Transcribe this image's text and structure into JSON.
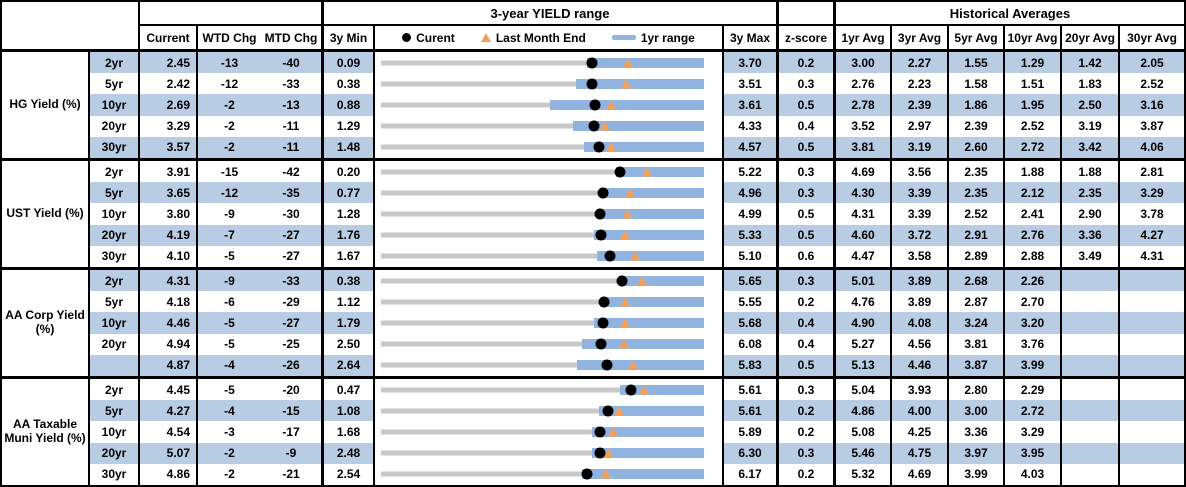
{
  "header": {
    "range_title": "3-year YIELD range",
    "hist_title": "Historical Averages",
    "cols": {
      "current": "Current",
      "wtd": "WTD Chg",
      "mtd": "MTD Chg",
      "min": "3y Min",
      "max": "3y Max",
      "z": "z-score",
      "a1": "1yr Avg",
      "a3": "3yr Avg",
      "a5": "5yr Avg",
      "a10": "10yr Avg",
      "a20": "20yr Avg",
      "a30": "30yr Avg"
    },
    "legend": {
      "current": "Curent",
      "last_month": "Last Month End",
      "range": "1yr range"
    }
  },
  "colors": {
    "row_shade": "#B8CCE4",
    "bar_1yr_range": "#90B4DF",
    "track_3yr_range": "#C8C8C8",
    "marker_current": "#000000",
    "marker_last_month_end": "#F7A055"
  },
  "chart_data": {
    "type": "table",
    "title": "3-year YIELD range",
    "legend_entries": [
      "Curent",
      "Last Month End",
      "1yr range"
    ],
    "columns": [
      "Current",
      "WTD Chg",
      "MTD Chg",
      "3y Min",
      "3y Max",
      "z-score",
      "1yr Avg",
      "3yr Avg",
      "5yr Avg",
      "10yr Avg",
      "20yr Avg",
      "30yr Avg"
    ],
    "row_chart_note": "each row: gray track spans 3y Min to 3y Max, blue bar = 1yr range, black dot = current, orange triangle = last month end",
    "sections": [
      {
        "label": "HG Yield (%)",
        "rows": [
          {
            "tenor": "2yr",
            "current": "2.45",
            "wtd": "-13",
            "mtd": "-40",
            "min": "0.09",
            "max": "3.70",
            "z": "0.2",
            "avgs": [
              "3.00",
              "2.27",
              "1.55",
              "1.29",
              "1.42",
              "2.05"
            ],
            "chart": {
              "low1y": 2.39,
              "high1y": 3.7,
              "lme": 2.85
            }
          },
          {
            "tenor": "5yr",
            "current": "2.42",
            "wtd": "-12",
            "mtd": "-33",
            "min": "0.38",
            "max": "3.51",
            "z": "0.3",
            "avgs": [
              "2.76",
              "2.23",
              "1.58",
              "1.51",
              "1.83",
              "2.52"
            ],
            "chart": {
              "low1y": 2.27,
              "high1y": 3.51,
              "lme": 2.75
            }
          },
          {
            "tenor": "10yr",
            "current": "2.69",
            "wtd": "-2",
            "mtd": "-13",
            "min": "0.88",
            "max": "3.61",
            "z": "0.5",
            "avgs": [
              "2.78",
              "2.39",
              "1.86",
              "1.95",
              "2.50",
              "3.16"
            ],
            "chart": {
              "low1y": 2.31,
              "high1y": 3.61,
              "lme": 2.82
            }
          },
          {
            "tenor": "20yr",
            "current": "3.29",
            "wtd": "-2",
            "mtd": "-11",
            "min": "1.29",
            "max": "4.33",
            "z": "0.4",
            "avgs": [
              "3.52",
              "2.97",
              "2.39",
              "2.52",
              "3.19",
              "3.87"
            ],
            "chart": {
              "low1y": 3.1,
              "high1y": 4.33,
              "lme": 3.4
            }
          },
          {
            "tenor": "30yr",
            "current": "3.57",
            "wtd": "-2",
            "mtd": "-11",
            "min": "1.48",
            "max": "4.57",
            "z": "0.5",
            "avgs": [
              "3.81",
              "3.19",
              "2.60",
              "2.72",
              "3.42",
              "4.06"
            ],
            "chart": {
              "low1y": 3.42,
              "high1y": 4.57,
              "lme": 3.68
            }
          }
        ]
      },
      {
        "label": "UST Yield (%)",
        "rows": [
          {
            "tenor": "2yr",
            "current": "3.91",
            "wtd": "-15",
            "mtd": "-42",
            "min": "0.20",
            "max": "5.22",
            "z": "0.3",
            "avgs": [
              "4.69",
              "3.56",
              "2.35",
              "1.88",
              "1.88",
              "2.81"
            ],
            "chart": {
              "low1y": 3.86,
              "high1y": 5.22,
              "lme": 4.33
            }
          },
          {
            "tenor": "5yr",
            "current": "3.65",
            "wtd": "-12",
            "mtd": "-35",
            "min": "0.77",
            "max": "4.96",
            "z": "0.3",
            "avgs": [
              "4.30",
              "3.39",
              "2.35",
              "2.12",
              "2.35",
              "3.29"
            ],
            "chart": {
              "low1y": 3.64,
              "high1y": 4.96,
              "lme": 4.0
            }
          },
          {
            "tenor": "10yr",
            "current": "3.80",
            "wtd": "-9",
            "mtd": "-30",
            "min": "1.28",
            "max": "4.99",
            "z": "0.5",
            "avgs": [
              "4.31",
              "3.39",
              "2.52",
              "2.41",
              "2.90",
              "3.78"
            ],
            "chart": {
              "low1y": 3.78,
              "high1y": 4.99,
              "lme": 4.1
            }
          },
          {
            "tenor": "20yr",
            "current": "4.19",
            "wtd": "-7",
            "mtd": "-27",
            "min": "1.76",
            "max": "5.33",
            "z": "0.5",
            "avgs": [
              "4.60",
              "3.72",
              "2.91",
              "2.76",
              "3.36",
              "4.27"
            ],
            "chart": {
              "low1y": 4.11,
              "high1y": 5.33,
              "lme": 4.46
            }
          },
          {
            "tenor": "30yr",
            "current": "4.10",
            "wtd": "-5",
            "mtd": "-27",
            "min": "1.67",
            "max": "5.10",
            "z": "0.6",
            "avgs": [
              "4.47",
              "3.58",
              "2.89",
              "2.88",
              "3.49",
              "4.31"
            ],
            "chart": {
              "low1y": 3.96,
              "high1y": 5.1,
              "lme": 4.37
            }
          }
        ]
      },
      {
        "label": "AA Corp Yield (%)",
        "rows": [
          {
            "tenor": "2yr",
            "current": "4.31",
            "wtd": "-9",
            "mtd": "-33",
            "min": "0.38",
            "max": "5.65",
            "z": "0.3",
            "avgs": [
              "5.01",
              "3.89",
              "2.68",
              "2.26",
              "",
              ""
            ],
            "chart": {
              "low1y": 4.26,
              "high1y": 5.65,
              "lme": 4.64
            }
          },
          {
            "tenor": "5yr",
            "current": "4.18",
            "wtd": "-6",
            "mtd": "-29",
            "min": "1.12",
            "max": "5.55",
            "z": "0.2",
            "avgs": [
              "4.76",
              "3.89",
              "2.87",
              "2.70",
              "",
              ""
            ],
            "chart": {
              "low1y": 4.15,
              "high1y": 5.55,
              "lme": 4.47
            }
          },
          {
            "tenor": "10yr",
            "current": "4.46",
            "wtd": "-5",
            "mtd": "-27",
            "min": "1.79",
            "max": "5.68",
            "z": "0.4",
            "avgs": [
              "4.90",
              "4.08",
              "3.24",
              "3.20",
              "",
              ""
            ],
            "chart": {
              "low1y": 4.35,
              "high1y": 5.68,
              "lme": 4.73
            }
          },
          {
            "tenor": "20yr",
            "current": "4.94",
            "wtd": "-5",
            "mtd": "-25",
            "min": "2.50",
            "max": "6.08",
            "z": "0.4",
            "avgs": [
              "5.27",
              "4.56",
              "3.81",
              "3.76",
              "",
              ""
            ],
            "chart": {
              "low1y": 4.73,
              "high1y": 6.08,
              "lme": 5.19
            }
          },
          {
            "tenor": "",
            "current": "4.87",
            "wtd": "-4",
            "mtd": "-26",
            "min": "2.64",
            "max": "5.83",
            "z": "0.5",
            "avgs": [
              "5.13",
              "4.46",
              "3.87",
              "3.99",
              "",
              ""
            ],
            "chart": {
              "low1y": 4.58,
              "high1y": 5.83,
              "lme": 5.13
            }
          }
        ]
      },
      {
        "label": "AA Taxable Muni Yield (%)",
        "rows": [
          {
            "tenor": "2yr",
            "current": "4.45",
            "wtd": "-5",
            "mtd": "-20",
            "min": "0.47",
            "max": "5.61",
            "z": "0.3",
            "avgs": [
              "5.04",
              "3.93",
              "2.80",
              "2.29",
              "",
              ""
            ],
            "chart": {
              "low1y": 4.28,
              "high1y": 5.61,
              "lme": 4.65
            }
          },
          {
            "tenor": "5yr",
            "current": "4.27",
            "wtd": "-4",
            "mtd": "-15",
            "min": "1.08",
            "max": "5.61",
            "z": "0.2",
            "avgs": [
              "4.86",
              "4.00",
              "3.00",
              "2.72",
              "",
              ""
            ],
            "chart": {
              "low1y": 4.14,
              "high1y": 5.61,
              "lme": 4.42
            }
          },
          {
            "tenor": "10yr",
            "current": "4.54",
            "wtd": "-3",
            "mtd": "-17",
            "min": "1.68",
            "max": "5.89",
            "z": "0.2",
            "avgs": [
              "5.08",
              "4.25",
              "3.36",
              "3.29",
              "",
              ""
            ],
            "chart": {
              "low1y": 4.43,
              "high1y": 5.89,
              "lme": 4.71
            }
          },
          {
            "tenor": "20yr",
            "current": "5.07",
            "wtd": "-2",
            "mtd": "-9",
            "min": "2.48",
            "max": "6.30",
            "z": "0.3",
            "avgs": [
              "5.46",
              "4.75",
              "3.97",
              "3.95",
              "",
              ""
            ],
            "chart": {
              "low1y": 4.97,
              "high1y": 6.3,
              "lme": 5.16
            }
          },
          {
            "tenor": "30yr",
            "current": "4.86",
            "wtd": "-2",
            "mtd": "-21",
            "min": "2.54",
            "max": "6.17",
            "z": "0.2",
            "avgs": [
              "5.32",
              "4.69",
              "3.99",
              "4.03",
              "",
              ""
            ],
            "chart": {
              "low1y": 4.8,
              "high1y": 6.17,
              "lme": 5.07
            }
          }
        ]
      }
    ]
  }
}
